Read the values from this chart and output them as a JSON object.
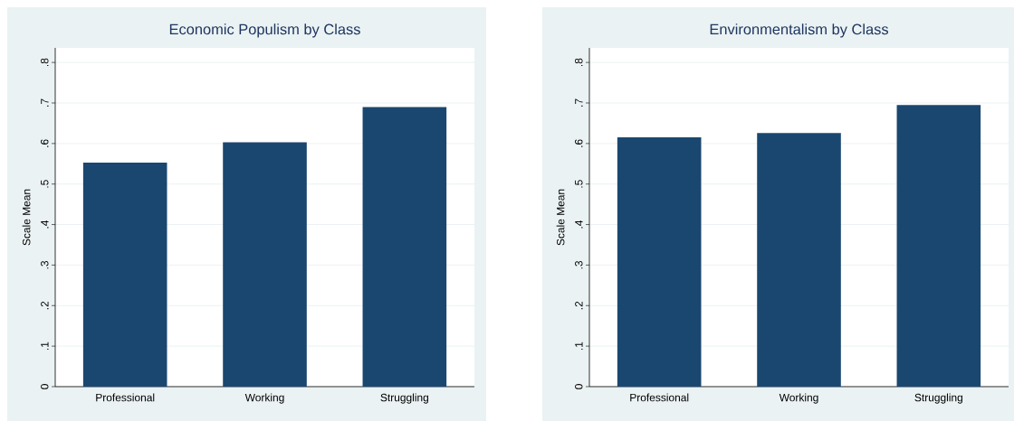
{
  "chart_data": [
    {
      "type": "bar",
      "title": "Economic Populism by Class",
      "ylabel": "Scale Mean",
      "categories": [
        "Professional",
        "Working",
        "Struggling"
      ],
      "values": [
        0.553,
        0.603,
        0.69
      ],
      "color": "#1a476f",
      "ylim": [
        0,
        0.836
      ],
      "yticks": [
        0,
        {
          "value": 0.1,
          "label": ".1"
        },
        {
          "value": 0.2,
          "label": ".2"
        },
        {
          "value": 0.3,
          "label": ".3"
        },
        {
          "value": 0.4,
          "label": ".4"
        },
        {
          "value": 0.5,
          "label": ".5"
        },
        {
          "value": 0.6,
          "label": ".6"
        },
        {
          "value": 0.7,
          "label": ".7"
        },
        {
          "value": 0.8,
          "label": ".8"
        }
      ],
      "grid": "y"
    },
    {
      "type": "bar",
      "title": "Environmentalism by Class",
      "ylabel": "Scale Mean",
      "categories": [
        "Professional",
        "Working",
        "Struggling"
      ],
      "values": [
        0.615,
        0.626,
        0.695
      ],
      "color": "#1a476f",
      "ylim": [
        0,
        0.836
      ],
      "yticks": [
        0,
        {
          "value": 0.1,
          "label": ".1"
        },
        {
          "value": 0.2,
          "label": ".2"
        },
        {
          "value": 0.3,
          "label": ".3"
        },
        {
          "value": 0.4,
          "label": ".4"
        },
        {
          "value": 0.5,
          "label": ".5"
        },
        {
          "value": 0.6,
          "label": ".6"
        },
        {
          "value": 0.7,
          "label": ".7"
        },
        {
          "value": 0.8,
          "label": ".8"
        }
      ],
      "grid": "y"
    }
  ]
}
